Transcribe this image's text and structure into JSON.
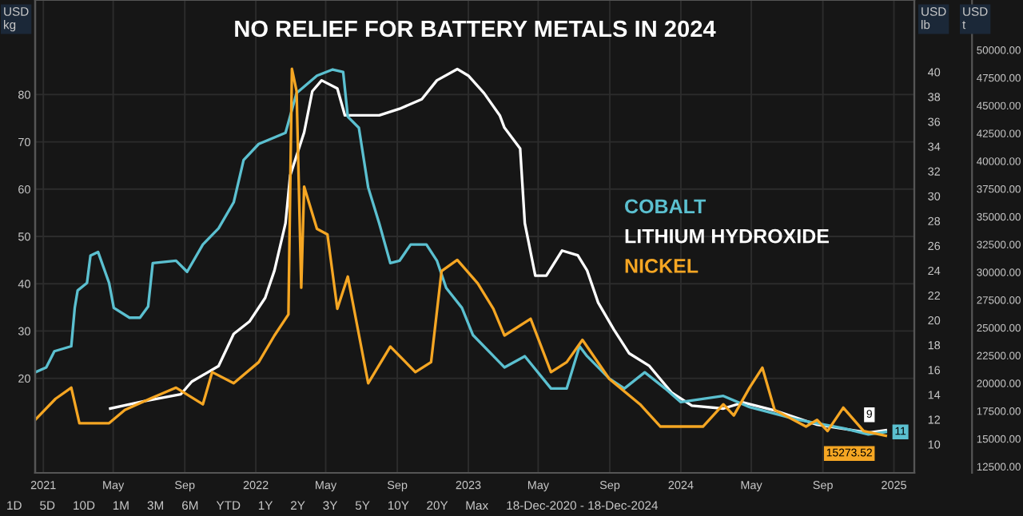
{
  "chart_data": {
    "type": "line",
    "title": "NO RELIEF FOR BATTERY METALS IN 2024",
    "ylabel": "USD\nkg",
    "y2label": "USD\nlb",
    "y3label": "USD\nt",
    "xlim": [
      "2020-12-18",
      "2025-02-05"
    ],
    "xticks": [
      {
        "value": "2021-01-01",
        "label": "2021"
      },
      {
        "value": "2021-05-01",
        "label": "May"
      },
      {
        "value": "2021-09-01",
        "label": "Sep"
      },
      {
        "value": "2022-01-01",
        "label": "2022"
      },
      {
        "value": "2022-05-01",
        "label": "May"
      },
      {
        "value": "2022-09-01",
        "label": "Sep"
      },
      {
        "value": "2023-01-01",
        "label": "2023"
      },
      {
        "value": "2023-05-01",
        "label": "May"
      },
      {
        "value": "2023-09-01",
        "label": "Sep"
      },
      {
        "value": "2024-01-01",
        "label": "2024"
      },
      {
        "value": "2024-05-01",
        "label": "May"
      },
      {
        "value": "2024-09-01",
        "label": "Sep"
      },
      {
        "value": "2025-01-01",
        "label": "2025"
      }
    ],
    "ylim": [
      0,
      100
    ],
    "yticks": [
      20,
      30,
      40,
      50,
      60,
      70,
      80
    ],
    "y2lim": [
      7.7,
      45.8
    ],
    "y2ticks": [
      10,
      12,
      14,
      16,
      18,
      20,
      22,
      24,
      26,
      28,
      30,
      32,
      34,
      36,
      38,
      40
    ],
    "y3lim": [
      11930,
      54500
    ],
    "y3ticks": [
      {
        "value": 12500,
        "label": "12500.00"
      },
      {
        "value": 15000,
        "label": "15000.00"
      },
      {
        "value": 17500,
        "label": "17500.00"
      },
      {
        "value": 20000,
        "label": "20000.00"
      },
      {
        "value": 22500,
        "label": "22500.00"
      },
      {
        "value": 25000,
        "label": "25000.00"
      },
      {
        "value": 27500,
        "label": "27500.00"
      },
      {
        "value": 30000,
        "label": "30000.00"
      },
      {
        "value": 32500,
        "label": "32500.00"
      },
      {
        "value": 35000,
        "label": "35000.00"
      },
      {
        "value": 37500,
        "label": "37500.00"
      },
      {
        "value": 40000,
        "label": "40000.00"
      },
      {
        "value": 42500,
        "label": "42500.00"
      },
      {
        "value": 45000,
        "label": "45000.00"
      },
      {
        "value": 47500,
        "label": "47500.00"
      },
      {
        "value": 50000,
        "label": "50000.00"
      }
    ],
    "grid": true,
    "legend": "right",
    "line_style": "solid",
    "marker": "none",
    "series": [
      {
        "name": "COBALT",
        "color": "#5bc0d0",
        "axis": "y2",
        "x": [
          "2020-12-18",
          "2021-01-06",
          "2021-01-20",
          "2021-02-18",
          "2021-02-24",
          "2021-03-01",
          "2021-03-17",
          "2021-03-23",
          "2021-04-05",
          "2021-04-24",
          "2021-05-02",
          "2021-05-29",
          "2021-06-16",
          "2021-06-30",
          "2021-07-08",
          "2021-08-17",
          "2021-09-05",
          "2021-10-02",
          "2021-10-29",
          "2021-11-24",
          "2021-12-11",
          "2022-01-06",
          "2022-02-21",
          "2022-03-12",
          "2022-04-16",
          "2022-05-13",
          "2022-05-31",
          "2022-06-08",
          "2022-06-27",
          "2022-07-13",
          "2022-08-01",
          "2022-08-20",
          "2022-09-05",
          "2022-09-24",
          "2022-10-21",
          "2022-11-08",
          "2022-11-24",
          "2022-12-21",
          "2023-01-09",
          "2023-03-04",
          "2023-04-08",
          "2023-05-23",
          "2023-06-19",
          "2023-07-11",
          "2023-07-24",
          "2023-08-31",
          "2023-09-26",
          "2023-10-31",
          "2023-12-05",
          "2024-01-01",
          "2024-03-14",
          "2024-04-28",
          "2024-07-18",
          "2024-10-06",
          "2024-11-18",
          "2024-12-18"
        ],
        "values": [
          15.8,
          16.2,
          17.5,
          17.9,
          21,
          22.4,
          23,
          25.2,
          25.5,
          23,
          21,
          20.2,
          20.2,
          21.1,
          24.6,
          24.8,
          23.9,
          26.1,
          27.4,
          29.5,
          32.9,
          34.2,
          35.1,
          38.3,
          39.7,
          40.2,
          40,
          36.4,
          35.5,
          30.7,
          27.8,
          24.6,
          24.8,
          26.1,
          26.1,
          24.8,
          22.6,
          21,
          18.8,
          16.2,
          17.1,
          14.5,
          14.5,
          17.9,
          17.1,
          15.3,
          14.5,
          15.8,
          14.5,
          13.4,
          13.9,
          13,
          12,
          11.3,
          10.8,
          11
        ],
        "value_labels": [
          null,
          null,
          null,
          null,
          null,
          null,
          null,
          null,
          null,
          null,
          null,
          null,
          null,
          null,
          null,
          null,
          null,
          null,
          null,
          null,
          null,
          null,
          null,
          null,
          null,
          null,
          null,
          null,
          null,
          null,
          null,
          null,
          null,
          null,
          null,
          null,
          null,
          null,
          null,
          null,
          null,
          null,
          null,
          null,
          null,
          null,
          null,
          null,
          null,
          null,
          null,
          null,
          null,
          null,
          null,
          "11"
        ]
      },
      {
        "name": "LITHIUM HYDROXIDE",
        "color": "#ffffff",
        "axis": "y",
        "x": [
          "2021-04-26",
          "2021-06-24",
          "2021-08-25",
          "2021-09-13",
          "2021-10-29",
          "2021-11-24",
          "2021-12-21",
          "2022-01-17",
          "2022-02-02",
          "2022-02-21",
          "2022-03-01",
          "2022-03-25",
          "2022-04-08",
          "2022-04-24",
          "2022-05-21",
          "2022-06-03",
          "2022-08-01",
          "2022-09-05",
          "2022-10-13",
          "2022-11-08",
          "2022-12-13",
          "2023-01-01",
          "2023-01-28",
          "2023-02-24",
          "2023-03-04",
          "2023-03-31",
          "2023-04-08",
          "2023-04-26",
          "2023-05-15",
          "2023-06-11",
          "2023-07-08",
          "2023-07-24",
          "2023-08-12",
          "2023-09-08",
          "2023-10-04",
          "2023-11-08",
          "2023-12-16",
          "2024-01-20",
          "2024-03-14",
          "2024-04-17",
          "2024-06-10",
          "2024-08-22",
          "2024-11-18",
          "2024-12-18"
        ],
        "values": [
          13.6,
          15.2,
          16.6,
          19.3,
          22.6,
          29.4,
          32,
          37,
          42.8,
          52.8,
          62.9,
          72,
          80.7,
          83,
          81.3,
          75.6,
          75.6,
          77,
          79,
          83,
          85.4,
          84,
          80.3,
          75.6,
          73,
          68.6,
          52.8,
          41.7,
          41.7,
          47,
          46,
          42.8,
          36,
          30.3,
          25.3,
          22.6,
          17,
          14.2,
          13.6,
          14.9,
          13.2,
          10.2,
          8.5,
          9
        ],
        "value_labels": [
          null,
          null,
          null,
          null,
          null,
          null,
          null,
          null,
          null,
          null,
          null,
          null,
          null,
          null,
          null,
          null,
          null,
          null,
          null,
          null,
          null,
          null,
          null,
          null,
          null,
          null,
          null,
          null,
          null,
          null,
          null,
          null,
          null,
          null,
          null,
          null,
          null,
          null,
          null,
          null,
          null,
          null,
          null,
          "9"
        ]
      },
      {
        "name": "NICKEL",
        "color": "#f5a623",
        "axis": "y3",
        "x": [
          "2020-12-18",
          "2021-01-22",
          "2021-02-18",
          "2021-03-04",
          "2021-04-24",
          "2021-05-21",
          "2021-07-03",
          "2021-08-17",
          "2021-10-02",
          "2021-10-18",
          "2021-11-24",
          "2022-01-06",
          "2022-02-02",
          "2022-02-26",
          "2022-03-04",
          "2022-03-12",
          "2022-03-20",
          "2022-03-25",
          "2022-04-16",
          "2022-05-04",
          "2022-05-21",
          "2022-06-08",
          "2022-07-13",
          "2022-08-20",
          "2022-10-02",
          "2022-10-29",
          "2022-11-16",
          "2022-12-13",
          "2023-01-17",
          "2023-02-13",
          "2023-03-04",
          "2023-04-18",
          "2023-05-23",
          "2023-06-19",
          "2023-07-16",
          "2023-08-31",
          "2023-10-23",
          "2023-11-27",
          "2024-02-08",
          "2024-03-14",
          "2024-04-01",
          "2024-04-28",
          "2024-05-20",
          "2024-06-10",
          "2024-08-03",
          "2024-08-22",
          "2024-09-09",
          "2024-10-06",
          "2024-11-10",
          "2024-12-18"
        ],
        "values": [
          16700,
          18600,
          19600,
          16400,
          16400,
          17600,
          18600,
          19600,
          18100,
          21000,
          20000,
          21900,
          24300,
          26200,
          48300,
          46300,
          28600,
          37700,
          33900,
          33400,
          26700,
          29600,
          20000,
          23300,
          21000,
          21900,
          30100,
          31100,
          29000,
          26700,
          24300,
          25800,
          21000,
          21900,
          23900,
          20400,
          18100,
          16100,
          16100,
          18100,
          17100,
          19600,
          21400,
          17600,
          16100,
          16700,
          15700,
          17800,
          15700,
          15273.52
        ],
        "value_labels": [
          null,
          null,
          null,
          null,
          null,
          null,
          null,
          null,
          null,
          null,
          null,
          null,
          null,
          null,
          null,
          null,
          null,
          null,
          null,
          null,
          null,
          null,
          null,
          null,
          null,
          null,
          null,
          null,
          null,
          null,
          null,
          null,
          null,
          null,
          null,
          null,
          null,
          null,
          null,
          null,
          null,
          null,
          null,
          null,
          null,
          null,
          null,
          null,
          null,
          "15273.52"
        ]
      }
    ],
    "annotations": [
      "1D",
      "5D",
      "10D",
      "1M",
      "3M",
      "6M",
      "YTD",
      "1Y",
      "2Y",
      "3Y",
      "5Y",
      "10Y",
      "20Y",
      "Max",
      "18-Dec-2020 - 18-Dec-2024"
    ]
  }
}
